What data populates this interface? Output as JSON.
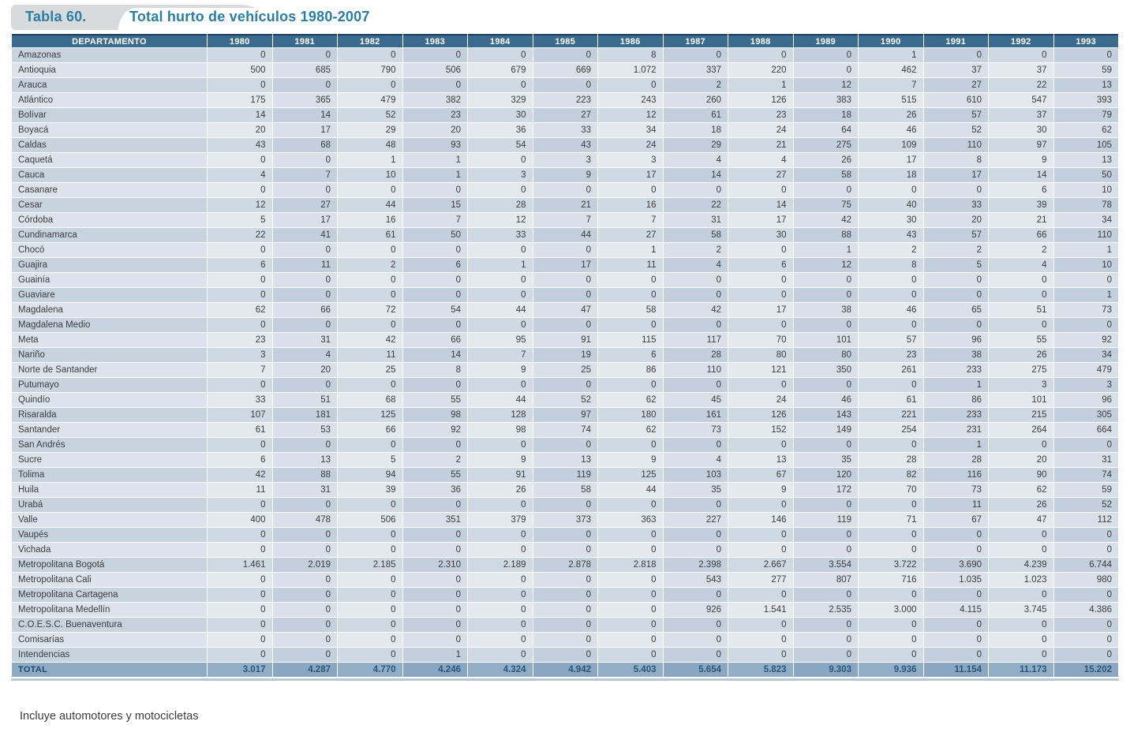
{
  "title": {
    "tab_label": "Tabla 60.",
    "text": "Total hurto de vehículos 1980-2007"
  },
  "footnote": "Incluye automotores y motocicletas",
  "colors": {
    "header_bg": "#3a6b8e",
    "header_text": "#ffffff",
    "accent_title": "#2b7ea6",
    "total_bg": "#8fabc4",
    "total_text": "#2b567e",
    "stripe_dark": "#c3cfdd",
    "stripe_light": "#e4e9f0"
  },
  "chart_data": {
    "type": "table",
    "title": "Total hurto de vehículos 1980-2007",
    "columns": [
      "DEPARTAMENTO",
      "1980",
      "1981",
      "1982",
      "1983",
      "1984",
      "1985",
      "1986",
      "1987",
      "1988",
      "1989",
      "1990",
      "1991",
      "1992",
      "1993"
    ],
    "rows": [
      {
        "name": "Amazonas",
        "values": [
          "0",
          "0",
          "0",
          "0",
          "0",
          "0",
          "8",
          "0",
          "0",
          "0",
          "1",
          "0",
          "0",
          "0"
        ]
      },
      {
        "name": "Antioquia",
        "values": [
          "500",
          "685",
          "790",
          "506",
          "679",
          "669",
          "1.072",
          "337",
          "220",
          "0",
          "462",
          "37",
          "37",
          "59"
        ]
      },
      {
        "name": "Arauca",
        "values": [
          "0",
          "0",
          "0",
          "0",
          "0",
          "0",
          "0",
          "2",
          "1",
          "12",
          "7",
          "27",
          "22",
          "13"
        ]
      },
      {
        "name": "Atlántico",
        "values": [
          "175",
          "365",
          "479",
          "382",
          "329",
          "223",
          "243",
          "260",
          "126",
          "383",
          "515",
          "610",
          "547",
          "393"
        ]
      },
      {
        "name": "Bolívar",
        "values": [
          "14",
          "14",
          "52",
          "23",
          "30",
          "27",
          "12",
          "61",
          "23",
          "18",
          "26",
          "57",
          "37",
          "79"
        ]
      },
      {
        "name": "Boyacá",
        "values": [
          "20",
          "17",
          "29",
          "20",
          "36",
          "33",
          "34",
          "18",
          "24",
          "64",
          "46",
          "52",
          "30",
          "62"
        ]
      },
      {
        "name": "Caldas",
        "values": [
          "43",
          "68",
          "48",
          "93",
          "54",
          "43",
          "24",
          "29",
          "21",
          "275",
          "109",
          "110",
          "97",
          "105"
        ]
      },
      {
        "name": "Caquetá",
        "values": [
          "0",
          "0",
          "1",
          "1",
          "0",
          "3",
          "3",
          "4",
          "4",
          "26",
          "17",
          "8",
          "9",
          "13"
        ]
      },
      {
        "name": "Cauca",
        "values": [
          "4",
          "7",
          "10",
          "1",
          "3",
          "9",
          "17",
          "14",
          "27",
          "58",
          "18",
          "17",
          "14",
          "50"
        ]
      },
      {
        "name": "Casanare",
        "values": [
          "0",
          "0",
          "0",
          "0",
          "0",
          "0",
          "0",
          "0",
          "0",
          "0",
          "0",
          "0",
          "6",
          "10"
        ]
      },
      {
        "name": "Cesar",
        "values": [
          "12",
          "27",
          "44",
          "15",
          "28",
          "21",
          "16",
          "22",
          "14",
          "75",
          "40",
          "33",
          "39",
          "78"
        ]
      },
      {
        "name": "Córdoba",
        "values": [
          "5",
          "17",
          "16",
          "7",
          "12",
          "7",
          "7",
          "31",
          "17",
          "42",
          "30",
          "20",
          "21",
          "34"
        ]
      },
      {
        "name": "Cundinamarca",
        "values": [
          "22",
          "41",
          "61",
          "50",
          "33",
          "44",
          "27",
          "58",
          "30",
          "88",
          "43",
          "57",
          "66",
          "110"
        ]
      },
      {
        "name": "Chocó",
        "values": [
          "0",
          "0",
          "0",
          "0",
          "0",
          "0",
          "1",
          "2",
          "0",
          "1",
          "2",
          "2",
          "2",
          "1"
        ]
      },
      {
        "name": "Guajira",
        "values": [
          "6",
          "11",
          "2",
          "6",
          "1",
          "17",
          "11",
          "4",
          "6",
          "12",
          "8",
          "5",
          "4",
          "10"
        ]
      },
      {
        "name": "Guainía",
        "values": [
          "0",
          "0",
          "0",
          "0",
          "0",
          "0",
          "0",
          "0",
          "0",
          "0",
          "0",
          "0",
          "0",
          "0"
        ]
      },
      {
        "name": "Guaviare",
        "values": [
          "0",
          "0",
          "0",
          "0",
          "0",
          "0",
          "0",
          "0",
          "0",
          "0",
          "0",
          "0",
          "0",
          "1"
        ]
      },
      {
        "name": "Magdalena",
        "values": [
          "62",
          "66",
          "72",
          "54",
          "44",
          "47",
          "58",
          "42",
          "17",
          "38",
          "46",
          "65",
          "51",
          "73"
        ]
      },
      {
        "name": "Magdalena Medio",
        "values": [
          "0",
          "0",
          "0",
          "0",
          "0",
          "0",
          "0",
          "0",
          "0",
          "0",
          "0",
          "0",
          "0",
          "0"
        ]
      },
      {
        "name": "Meta",
        "values": [
          "23",
          "31",
          "42",
          "66",
          "95",
          "91",
          "115",
          "117",
          "70",
          "101",
          "57",
          "96",
          "55",
          "92"
        ]
      },
      {
        "name": "Nariño",
        "values": [
          "3",
          "4",
          "11",
          "14",
          "7",
          "19",
          "6",
          "28",
          "80",
          "80",
          "23",
          "38",
          "26",
          "34"
        ]
      },
      {
        "name": "Norte de Santander",
        "values": [
          "7",
          "20",
          "25",
          "8",
          "9",
          "25",
          "86",
          "110",
          "121",
          "350",
          "261",
          "233",
          "275",
          "479"
        ]
      },
      {
        "name": "Putumayo",
        "values": [
          "0",
          "0",
          "0",
          "0",
          "0",
          "0",
          "0",
          "0",
          "0",
          "0",
          "0",
          "1",
          "3",
          "3"
        ]
      },
      {
        "name": "Quindío",
        "values": [
          "33",
          "51",
          "68",
          "55",
          "44",
          "52",
          "62",
          "45",
          "24",
          "46",
          "61",
          "86",
          "101",
          "96"
        ]
      },
      {
        "name": "Risaralda",
        "values": [
          "107",
          "181",
          "125",
          "98",
          "128",
          "97",
          "180",
          "161",
          "126",
          "143",
          "221",
          "233",
          "215",
          "305"
        ]
      },
      {
        "name": "Santander",
        "values": [
          "61",
          "53",
          "66",
          "92",
          "98",
          "74",
          "62",
          "73",
          "152",
          "149",
          "254",
          "231",
          "264",
          "664"
        ]
      },
      {
        "name": "San Andrés",
        "values": [
          "0",
          "0",
          "0",
          "0",
          "0",
          "0",
          "0",
          "0",
          "0",
          "0",
          "0",
          "1",
          "0",
          "0"
        ]
      },
      {
        "name": "Sucre",
        "values": [
          "6",
          "13",
          "5",
          "2",
          "9",
          "13",
          "9",
          "4",
          "13",
          "35",
          "28",
          "28",
          "20",
          "31"
        ]
      },
      {
        "name": "Tolima",
        "values": [
          "42",
          "88",
          "94",
          "55",
          "91",
          "119",
          "125",
          "103",
          "67",
          "120",
          "82",
          "116",
          "90",
          "74"
        ]
      },
      {
        "name": "Huila",
        "values": [
          "11",
          "31",
          "39",
          "36",
          "26",
          "58",
          "44",
          "35",
          "9",
          "172",
          "70",
          "73",
          "62",
          "59"
        ]
      },
      {
        "name": "Urabá",
        "values": [
          "0",
          "0",
          "0",
          "0",
          "0",
          "0",
          "0",
          "0",
          "0",
          "0",
          "0",
          "11",
          "26",
          "52"
        ]
      },
      {
        "name": "Valle",
        "values": [
          "400",
          "478",
          "506",
          "351",
          "379",
          "373",
          "363",
          "227",
          "146",
          "119",
          "71",
          "67",
          "47",
          "112"
        ]
      },
      {
        "name": "Vaupés",
        "values": [
          "0",
          "0",
          "0",
          "0",
          "0",
          "0",
          "0",
          "0",
          "0",
          "0",
          "0",
          "0",
          "0",
          "0"
        ]
      },
      {
        "name": "Vichada",
        "values": [
          "0",
          "0",
          "0",
          "0",
          "0",
          "0",
          "0",
          "0",
          "0",
          "0",
          "0",
          "0",
          "0",
          "0"
        ]
      },
      {
        "name": "Metropolitana Bogotá",
        "values": [
          "1.461",
          "2.019",
          "2.185",
          "2.310",
          "2.189",
          "2.878",
          "2.818",
          "2.398",
          "2.667",
          "3.554",
          "3.722",
          "3.690",
          "4.239",
          "6.744"
        ]
      },
      {
        "name": "Metropolitana Cali",
        "values": [
          "0",
          "0",
          "0",
          "0",
          "0",
          "0",
          "0",
          "543",
          "277",
          "807",
          "716",
          "1.035",
          "1.023",
          "980"
        ]
      },
      {
        "name": "Metropolitana Cartagena",
        "values": [
          "0",
          "0",
          "0",
          "0",
          "0",
          "0",
          "0",
          "0",
          "0",
          "0",
          "0",
          "0",
          "0",
          "0"
        ]
      },
      {
        "name": "Metropolitana Medellín",
        "values": [
          "0",
          "0",
          "0",
          "0",
          "0",
          "0",
          "0",
          "926",
          "1.541",
          "2.535",
          "3.000",
          "4.115",
          "3.745",
          "4.386"
        ]
      },
      {
        "name": "C.O.E.S.C. Buenaventura",
        "values": [
          "0",
          "0",
          "0",
          "0",
          "0",
          "0",
          "0",
          "0",
          "0",
          "0",
          "0",
          "0",
          "0",
          "0"
        ]
      },
      {
        "name": "Comisarías",
        "values": [
          "0",
          "0",
          "0",
          "0",
          "0",
          "0",
          "0",
          "0",
          "0",
          "0",
          "0",
          "0",
          "0",
          "0"
        ]
      },
      {
        "name": "Intendencias",
        "values": [
          "0",
          "0",
          "0",
          "1",
          "0",
          "0",
          "0",
          "0",
          "0",
          "0",
          "0",
          "0",
          "0",
          "0"
        ]
      }
    ],
    "total": {
      "label": "TOTAL",
      "values": [
        "3.017",
        "4.287",
        "4.770",
        "4.246",
        "4.324",
        "4.942",
        "5.403",
        "5.654",
        "5.823",
        "9.303",
        "9.936",
        "11.154",
        "11.173",
        "15.202"
      ]
    }
  }
}
